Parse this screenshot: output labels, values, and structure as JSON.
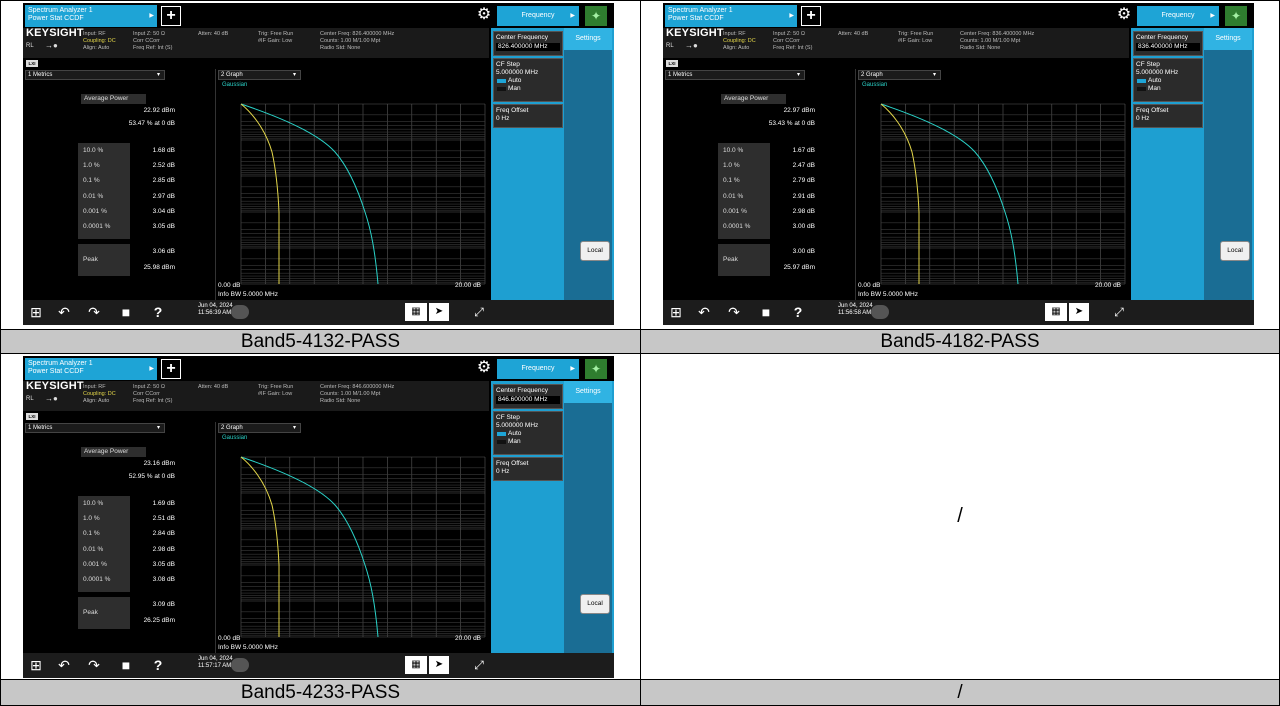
{
  "captions": [
    "Band5-4132-PASS",
    "Band5-4182-PASS",
    "Band5-4233-PASS",
    "/"
  ],
  "empty_cell_text": "/",
  "common": {
    "tab_line1": "Spectrum Analyzer 1",
    "tab_line2": "Power Stat CCDF",
    "frequency_button": "Frequency",
    "brand": "KEYSIGHT",
    "rl": "RL",
    "input": "Input: RF",
    "coupling": "Coupling: DC",
    "align": "Align: Auto",
    "input_z": "Input Z: 50 Ω",
    "corr": "Corr CCorr",
    "freq_ref": "Freq Ref: Int (S)",
    "atten": "Atten: 40 dB",
    "trig": "Trig: Free Run",
    "gain": "#IF Gain: Low",
    "radio_std": "Radio Std: None",
    "lxi": "LXI",
    "metrics_dropdown": "1 Metrics",
    "graph_dropdown": "2 Graph",
    "gaussian": "Gaussian",
    "avg_power_label": "Average Power",
    "peak_label": "Peak",
    "percent_labels": [
      "10.0 %",
      "1.0 %",
      "0.1 %",
      "0.01 %",
      "0.001 %",
      "0.0001 %"
    ],
    "center_freq_label": "Center Frequency",
    "settings": "Settings",
    "cf_step_label": "CF Step",
    "cf_step_value": "5.000000 MHz",
    "auto": "Auto",
    "man": "Man",
    "freq_offset_label": "Freq Offset",
    "freq_offset_value": "0 Hz",
    "local": "Local",
    "x_start": "0.00 dB",
    "x_end": "20.00 dB",
    "info_bw": "Info BW 5.0000 MHz",
    "date": "Jun 04, 2024"
  },
  "screens": [
    {
      "center_freq": "Center Freq: 826.400000 MHz",
      "counts": "Counts: 1.00 M/1.00 Mpt",
      "center_freq_value": "826.400000 MHz",
      "avg_power": "22.92 dBm",
      "pct_at_0": "53.47 % at 0 dB",
      "values": [
        "1.68 dB",
        "2.52 dB",
        "2.85 dB",
        "2.97 dB",
        "3.04 dB",
        "3.05 dB"
      ],
      "peak_db": "3.06 dB",
      "peak_dbm": "25.98 dBm",
      "time": "11:56:39 AM"
    },
    {
      "center_freq": "Center Freq: 836.400000 MHz",
      "counts": "Counts: 1.00 M/1.00 Mpt",
      "center_freq_value": "836.400000 MHz",
      "avg_power": "22.97 dBm",
      "pct_at_0": "53.43 % at 0 dB",
      "values": [
        "1.67 dB",
        "2.47 dB",
        "2.79 dB",
        "2.91 dB",
        "2.98 dB",
        "3.00 dB"
      ],
      "peak_db": "3.00 dB",
      "peak_dbm": "25.97 dBm",
      "time": "11:56:58 AM"
    },
    {
      "center_freq": "Center Freq: 846.600000 MHz",
      "counts": "Counts: 1.00 M/1.00 Mpt",
      "center_freq_value": "846.600000 MHz",
      "avg_power": "23.16 dBm",
      "pct_at_0": "52.95 % at 0 dB",
      "values": [
        "1.69 dB",
        "2.51 dB",
        "2.84 dB",
        "2.98 dB",
        "3.05 dB",
        "3.08 dB"
      ],
      "peak_db": "3.09 dB",
      "peak_dbm": "26.25 dBm",
      "time": "11:57:17 AM"
    }
  ]
}
